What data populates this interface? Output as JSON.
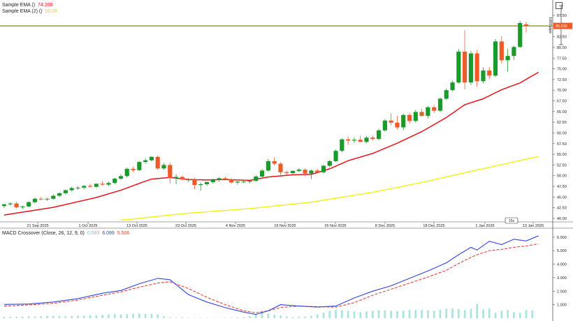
{
  "legends": {
    "ema1_label": "Sample EMA ()",
    "ema1_value": "74.208",
    "ema2_label": "Sample EMA (2) ()",
    "ema2_value": "55.09",
    "macd_label": "MACD Crossover (Close, 26, 12, 9, 0)",
    "macd_hist_value": "0.593",
    "macd_line_value": "6.099",
    "macd_signal_value": "5.506"
  },
  "price_badge": "85.032",
  "price_range_label": "1000 pips",
  "time_badge": "15s",
  "colors": {
    "up": "#1a9a2a",
    "down": "#f05a28",
    "ema1": "#e8131b",
    "ema2": "#f2f20c",
    "macd": "#3344e0",
    "signal": "#e8433a",
    "hist": "#a6e4de",
    "hline": "#7c8a1a"
  },
  "chart_data": [
    {
      "type": "candlestick",
      "title": "",
      "x_ticks": [
        "21 Sep 2025",
        "1 Oct 2025",
        "13 Oct 2025",
        "23 Oct 2025",
        "4 Nov 2025",
        "16 Nov 2025",
        "26 Nov 2025",
        "8 Dec 2025",
        "18 Dec 2025",
        "1 Jan 2026",
        "13 Jan 2026"
      ],
      "y_ticks": [
        "40.00",
        "42.50",
        "45.00",
        "47.50",
        "50.00",
        "52.50",
        "55.00",
        "57.50",
        "60.00",
        "62.50",
        "65.00",
        "67.50",
        "70.00",
        "72.50",
        "75.00",
        "77.50",
        "80.00",
        "82.50",
        "87.50"
      ],
      "ylim": [
        40,
        87.5
      ],
      "horizontal_line": 85.03,
      "candles": [
        {
          "o": 42.9,
          "h": 43.4,
          "l": 42.4,
          "c": 43.3
        },
        {
          "o": 43.3,
          "h": 43.8,
          "l": 43.0,
          "c": 43.5
        },
        {
          "o": 43.5,
          "h": 43.9,
          "l": 42.4,
          "c": 42.6
        },
        {
          "o": 42.6,
          "h": 43.0,
          "l": 42.2,
          "c": 42.8
        },
        {
          "o": 42.8,
          "h": 44.0,
          "l": 42.6,
          "c": 43.8
        },
        {
          "o": 43.8,
          "h": 44.9,
          "l": 43.5,
          "c": 44.6
        },
        {
          "o": 44.6,
          "h": 45.0,
          "l": 44.2,
          "c": 44.5
        },
        {
          "o": 44.5,
          "h": 44.8,
          "l": 44.1,
          "c": 44.6
        },
        {
          "o": 44.6,
          "h": 45.6,
          "l": 44.4,
          "c": 45.3
        },
        {
          "o": 45.3,
          "h": 46.1,
          "l": 45.0,
          "c": 45.9
        },
        {
          "o": 45.9,
          "h": 46.8,
          "l": 45.6,
          "c": 46.6
        },
        {
          "o": 46.6,
          "h": 47.4,
          "l": 46.3,
          "c": 47.1
        },
        {
          "o": 47.1,
          "h": 47.5,
          "l": 46.7,
          "c": 47.2
        },
        {
          "o": 47.2,
          "h": 47.8,
          "l": 46.8,
          "c": 47.6
        },
        {
          "o": 47.6,
          "h": 48.1,
          "l": 47.2,
          "c": 47.4
        },
        {
          "o": 47.4,
          "h": 48.2,
          "l": 47.1,
          "c": 48.1
        },
        {
          "o": 48.1,
          "h": 48.7,
          "l": 47.7,
          "c": 47.9
        },
        {
          "o": 47.9,
          "h": 48.6,
          "l": 47.6,
          "c": 48.3
        },
        {
          "o": 48.3,
          "h": 49.5,
          "l": 48.0,
          "c": 49.3
        },
        {
          "o": 49.3,
          "h": 50.3,
          "l": 49.0,
          "c": 49.9
        },
        {
          "o": 49.9,
          "h": 51.9,
          "l": 49.6,
          "c": 51.6
        },
        {
          "o": 51.6,
          "h": 52.1,
          "l": 50.8,
          "c": 51.3
        },
        {
          "o": 51.3,
          "h": 53.4,
          "l": 51.1,
          "c": 53.2
        },
        {
          "o": 53.2,
          "h": 54.0,
          "l": 52.8,
          "c": 53.6
        },
        {
          "o": 53.6,
          "h": 54.5,
          "l": 53.3,
          "c": 54.4
        },
        {
          "o": 54.4,
          "h": 54.7,
          "l": 51.3,
          "c": 51.7
        },
        {
          "o": 51.7,
          "h": 52.9,
          "l": 51.4,
          "c": 52.5
        },
        {
          "o": 52.5,
          "h": 53.0,
          "l": 48.2,
          "c": 49.5
        },
        {
          "o": 49.5,
          "h": 50.3,
          "l": 48.0,
          "c": 49.7
        },
        {
          "o": 49.7,
          "h": 50.0,
          "l": 48.8,
          "c": 49.1
        },
        {
          "o": 49.1,
          "h": 49.4,
          "l": 48.5,
          "c": 49.1
        },
        {
          "o": 49.1,
          "h": 49.5,
          "l": 46.8,
          "c": 47.8
        },
        {
          "o": 47.8,
          "h": 48.4,
          "l": 46.5,
          "c": 48.0
        },
        {
          "o": 48.0,
          "h": 48.6,
          "l": 47.6,
          "c": 48.5
        },
        {
          "o": 48.5,
          "h": 49.3,
          "l": 48.1,
          "c": 49.0
        },
        {
          "o": 49.0,
          "h": 49.6,
          "l": 48.6,
          "c": 49.4
        },
        {
          "o": 49.4,
          "h": 49.8,
          "l": 48.9,
          "c": 49.1
        },
        {
          "o": 49.1,
          "h": 49.4,
          "l": 48.1,
          "c": 48.4
        },
        {
          "o": 48.4,
          "h": 48.8,
          "l": 47.9,
          "c": 48.6
        },
        {
          "o": 48.6,
          "h": 49.0,
          "l": 48.3,
          "c": 48.6
        },
        {
          "o": 48.6,
          "h": 49.1,
          "l": 48.2,
          "c": 48.8
        },
        {
          "o": 48.8,
          "h": 50.1,
          "l": 48.6,
          "c": 49.8
        },
        {
          "o": 49.8,
          "h": 51.6,
          "l": 49.5,
          "c": 51.2
        },
        {
          "o": 51.2,
          "h": 53.9,
          "l": 50.9,
          "c": 53.4
        },
        {
          "o": 53.4,
          "h": 54.3,
          "l": 52.4,
          "c": 52.8
        },
        {
          "o": 52.8,
          "h": 53.1,
          "l": 50.1,
          "c": 50.8
        },
        {
          "o": 50.8,
          "h": 51.2,
          "l": 50.2,
          "c": 50.6
        },
        {
          "o": 50.6,
          "h": 51.3,
          "l": 50.3,
          "c": 51.1
        },
        {
          "o": 51.1,
          "h": 51.8,
          "l": 50.8,
          "c": 51.4
        },
        {
          "o": 51.4,
          "h": 51.7,
          "l": 49.9,
          "c": 50.5
        },
        {
          "o": 50.5,
          "h": 51.4,
          "l": 49.2,
          "c": 51.2
        },
        {
          "o": 51.2,
          "h": 51.6,
          "l": 50.5,
          "c": 50.8
        },
        {
          "o": 50.8,
          "h": 52.6,
          "l": 50.5,
          "c": 52.3
        },
        {
          "o": 52.3,
          "h": 53.7,
          "l": 52.0,
          "c": 53.4
        },
        {
          "o": 53.4,
          "h": 56.1,
          "l": 53.2,
          "c": 55.8
        },
        {
          "o": 55.8,
          "h": 58.7,
          "l": 55.5,
          "c": 58.5
        },
        {
          "o": 58.5,
          "h": 59.2,
          "l": 57.2,
          "c": 58.2
        },
        {
          "o": 58.2,
          "h": 59.0,
          "l": 57.6,
          "c": 58.4
        },
        {
          "o": 58.4,
          "h": 59.4,
          "l": 57.9,
          "c": 57.9
        },
        {
          "o": 57.9,
          "h": 59.2,
          "l": 57.6,
          "c": 58.9
        },
        {
          "o": 58.9,
          "h": 59.4,
          "l": 58.2,
          "c": 58.6
        },
        {
          "o": 58.6,
          "h": 61.0,
          "l": 58.3,
          "c": 60.6
        },
        {
          "o": 60.6,
          "h": 63.2,
          "l": 60.3,
          "c": 62.9
        },
        {
          "o": 62.9,
          "h": 64.6,
          "l": 61.8,
          "c": 62.4
        },
        {
          "o": 62.4,
          "h": 64.0,
          "l": 60.8,
          "c": 61.3
        },
        {
          "o": 61.3,
          "h": 64.5,
          "l": 60.6,
          "c": 64.2
        },
        {
          "o": 64.2,
          "h": 64.7,
          "l": 62.2,
          "c": 62.8
        },
        {
          "o": 62.8,
          "h": 65.4,
          "l": 62.4,
          "c": 64.9
        },
        {
          "o": 64.9,
          "h": 65.7,
          "l": 63.8,
          "c": 64.0
        },
        {
          "o": 64.0,
          "h": 66.3,
          "l": 63.4,
          "c": 66.0
        },
        {
          "o": 66.0,
          "h": 66.5,
          "l": 64.7,
          "c": 65.2
        },
        {
          "o": 65.2,
          "h": 68.3,
          "l": 64.9,
          "c": 68.0
        },
        {
          "o": 68.0,
          "h": 70.4,
          "l": 67.7,
          "c": 70.0
        },
        {
          "o": 70.0,
          "h": 72.2,
          "l": 69.7,
          "c": 71.8
        },
        {
          "o": 71.8,
          "h": 79.6,
          "l": 71.5,
          "c": 79.0
        },
        {
          "o": 79.0,
          "h": 84.0,
          "l": 70.2,
          "c": 71.8
        },
        {
          "o": 71.8,
          "h": 79.2,
          "l": 71.2,
          "c": 78.6
        },
        {
          "o": 78.6,
          "h": 79.4,
          "l": 70.8,
          "c": 72.1
        },
        {
          "o": 72.1,
          "h": 75.3,
          "l": 71.6,
          "c": 74.6
        },
        {
          "o": 74.6,
          "h": 75.4,
          "l": 72.6,
          "c": 73.4
        },
        {
          "o": 73.4,
          "h": 81.9,
          "l": 73.1,
          "c": 81.4
        },
        {
          "o": 81.4,
          "h": 82.6,
          "l": 76.2,
          "c": 77.0
        },
        {
          "o": 77.0,
          "h": 79.7,
          "l": 74.3,
          "c": 78.0
        },
        {
          "o": 78.0,
          "h": 80.4,
          "l": 77.1,
          "c": 80.1
        },
        {
          "o": 80.1,
          "h": 86.2,
          "l": 79.9,
          "c": 85.7
        },
        {
          "o": 85.4,
          "h": 86.0,
          "l": 83.5,
          "c": 85.0
        }
      ],
      "ema1": [
        [
          0,
          40.8
        ],
        [
          8,
          42.6
        ],
        [
          15,
          44.9
        ],
        [
          19,
          46.6
        ],
        [
          22,
          48.2
        ],
        [
          24,
          49.2
        ],
        [
          27,
          49.6
        ],
        [
          30,
          49.1
        ],
        [
          33,
          49.0
        ],
        [
          36,
          49.1
        ],
        [
          40,
          48.9
        ],
        [
          43,
          49.7
        ],
        [
          47,
          50.2
        ],
        [
          50,
          50.3
        ],
        [
          53,
          51.6
        ],
        [
          56,
          53.5
        ],
        [
          60,
          55.2
        ],
        [
          64,
          57.6
        ],
        [
          68,
          60.3
        ],
        [
          72,
          63.6
        ],
        [
          75,
          66.6
        ],
        [
          78,
          68.0
        ],
        [
          81,
          70.1
        ],
        [
          84,
          71.7
        ],
        [
          87,
          74.2
        ]
      ],
      "ema2": [
        [
          19,
          39.6
        ],
        [
          30,
          41.2
        ],
        [
          40,
          42.3
        ],
        [
          50,
          43.8
        ],
        [
          60,
          46.1
        ],
        [
          68,
          48.4
        ],
        [
          76,
          51.0
        ],
        [
          82,
          52.9
        ],
        [
          87,
          54.5
        ]
      ]
    },
    {
      "type": "line",
      "title": "MACD Crossover (Close, 26, 12, 9, 0)",
      "y_ticks": [
        "1.000",
        "2.000",
        "3.000",
        "4.000",
        "5.000",
        "6.000"
      ],
      "ylim": [
        0,
        6.2
      ],
      "series": [
        {
          "name": "MACD",
          "points": [
            [
              0,
              1.02
            ],
            [
              4,
              1.05
            ],
            [
              8,
              1.2
            ],
            [
              12,
              1.45
            ],
            [
              16,
              1.85
            ],
            [
              19,
              2.05
            ],
            [
              22,
              2.55
            ],
            [
              25,
              2.95
            ],
            [
              27,
              2.85
            ],
            [
              30,
              1.75
            ],
            [
              33,
              1.2
            ],
            [
              36,
              0.78
            ],
            [
              39,
              0.45
            ],
            [
              41,
              0.28
            ],
            [
              43,
              0.55
            ],
            [
              45,
              1.0
            ],
            [
              48,
              0.9
            ],
            [
              51,
              0.82
            ],
            [
              54,
              0.9
            ],
            [
              57,
              1.5
            ],
            [
              60,
              2.0
            ],
            [
              63,
              2.4
            ],
            [
              66,
              2.95
            ],
            [
              69,
              3.5
            ],
            [
              72,
              4.1
            ],
            [
              74,
              4.7
            ],
            [
              76,
              5.25
            ],
            [
              77,
              5.05
            ],
            [
              79,
              5.7
            ],
            [
              81,
              5.45
            ],
            [
              83,
              5.85
            ],
            [
              85,
              5.72
            ],
            [
              87,
              6.1
            ]
          ]
        },
        {
          "name": "Signal",
          "points": [
            [
              0,
              0.9
            ],
            [
              4,
              0.98
            ],
            [
              8,
              1.1
            ],
            [
              12,
              1.35
            ],
            [
              16,
              1.7
            ],
            [
              19,
              1.95
            ],
            [
              22,
              2.3
            ],
            [
              25,
              2.6
            ],
            [
              27,
              2.7
            ],
            [
              30,
              2.2
            ],
            [
              33,
              1.55
            ],
            [
              36,
              1.0
            ],
            [
              39,
              0.55
            ],
            [
              41,
              0.4
            ],
            [
              43,
              0.55
            ],
            [
              45,
              0.8
            ],
            [
              48,
              0.9
            ],
            [
              51,
              0.85
            ],
            [
              54,
              0.82
            ],
            [
              57,
              1.15
            ],
            [
              60,
              1.7
            ],
            [
              63,
              2.15
            ],
            [
              66,
              2.6
            ],
            [
              69,
              3.05
            ],
            [
              72,
              3.55
            ],
            [
              74,
              4.05
            ],
            [
              76,
              4.5
            ],
            [
              77,
              4.7
            ],
            [
              79,
              5.0
            ],
            [
              81,
              5.1
            ],
            [
              83,
              5.25
            ],
            [
              85,
              5.35
            ],
            [
              87,
              5.5
            ]
          ]
        },
        {
          "name": "Histogram",
          "bars": [
            0.12,
            0.1,
            0.1,
            0.12,
            0.14,
            0.13,
            0.15,
            0.17,
            0.18,
            0.16,
            0.15,
            0.17,
            0.19,
            0.2,
            0.22,
            0.22,
            0.25,
            0.28,
            0.3,
            0.28,
            0.3,
            0.33,
            0.35,
            0.32,
            0.3,
            0.28,
            0.15,
            0.05,
            0.04,
            0.05,
            0.03,
            0.02,
            0.02,
            0.02,
            0.02,
            0.02,
            0.03,
            0.03,
            0.05,
            0.08,
            0.15,
            0.3,
            0.4,
            0.35,
            0.25,
            0.2,
            0.12,
            0.08,
            0.1,
            0.12,
            0.18,
            0.28,
            0.42,
            0.55,
            0.62,
            0.6,
            0.55,
            0.5,
            0.45,
            0.5,
            0.55,
            0.6,
            0.58,
            0.55,
            0.52,
            0.55,
            0.6,
            0.62,
            0.6,
            0.58,
            0.55,
            0.62,
            0.7,
            0.72,
            0.68,
            0.6,
            0.7,
            1.05,
            0.65,
            0.72,
            0.4,
            0.55,
            0.6,
            0.45,
            0.4,
            0.6,
            0.59
          ]
        }
      ]
    }
  ]
}
